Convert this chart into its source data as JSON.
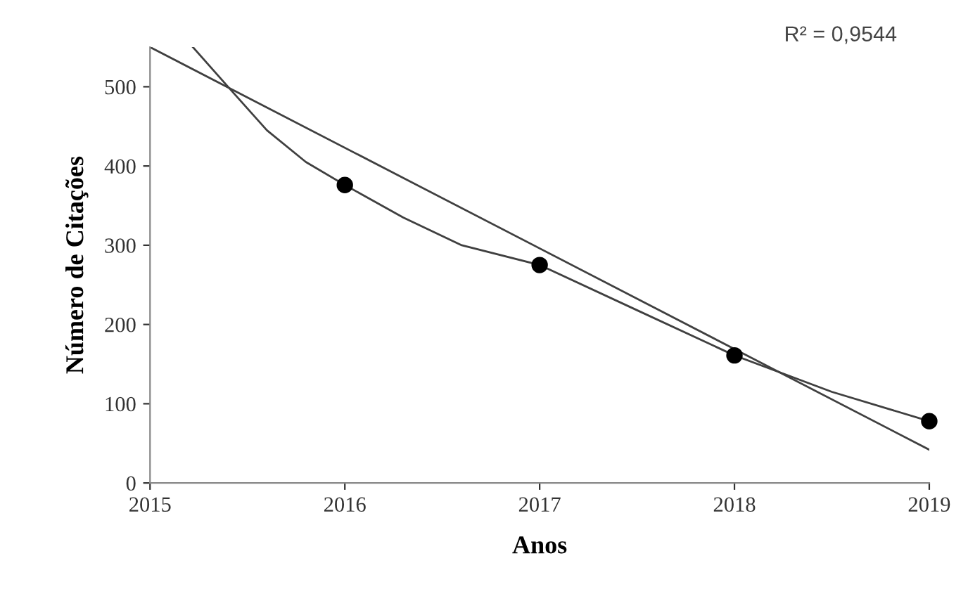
{
  "chart_data": {
    "type": "scatter",
    "xlabel": "Anos",
    "ylabel": "Número de Citações",
    "xlim": [
      2015,
      2019
    ],
    "xticks": [
      2015,
      2016,
      2017,
      2018,
      2019
    ],
    "ylim": [
      0,
      550
    ],
    "yticks": [
      0,
      100,
      200,
      300,
      400,
      500
    ],
    "grid": false,
    "annotations": [
      "R² = 0,9544"
    ],
    "series": [
      {
        "type": "line",
        "marker": "none",
        "color": "#404040",
        "x": [
          2015.22,
          2015.4,
          2015.6,
          2015.8,
          2016,
          2016.3,
          2016.6,
          2017,
          2017.5,
          2018,
          2018.5,
          2019
        ],
        "values": [
          550,
          500,
          445,
          405,
          376,
          335,
          300,
          275,
          218,
          161,
          115,
          78
        ]
      },
      {
        "type": "line",
        "marker": "none",
        "color": "#404040",
        "x": [
          2015,
          2019
        ],
        "values": [
          550,
          42
        ]
      },
      {
        "marker": "circle",
        "color": "#000000",
        "x": [
          2016,
          2017,
          2018,
          2019
        ],
        "values": [
          376,
          275,
          161,
          78
        ]
      }
    ]
  }
}
